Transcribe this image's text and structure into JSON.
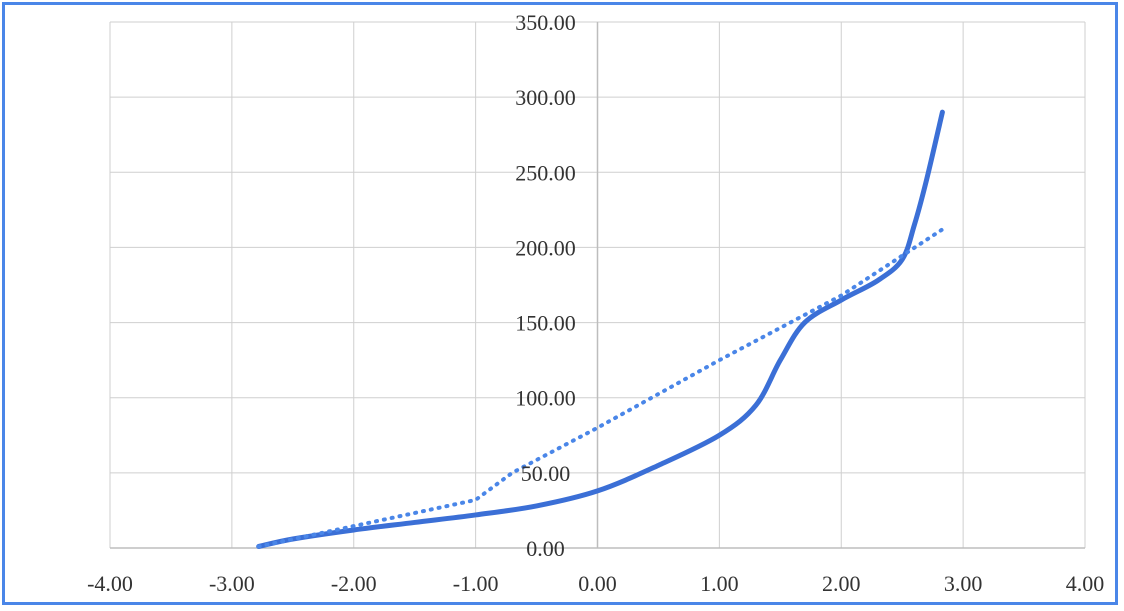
{
  "chart_data": {
    "type": "line",
    "title": "",
    "xlabel": "",
    "ylabel": "",
    "xlim": [
      -4,
      4
    ],
    "ylim": [
      0,
      350
    ],
    "x_ticks": [
      -4,
      -3,
      -2,
      -1,
      0,
      1,
      2,
      3,
      4
    ],
    "y_ticks": [
      0,
      50,
      100,
      150,
      200,
      250,
      300,
      350
    ],
    "x_tick_labels": [
      "-4.00",
      "-3.00",
      "-2.00",
      "-1.00",
      "0.00",
      "1.00",
      "2.00",
      "3.00",
      "4.00"
    ],
    "y_tick_labels": [
      "0.00",
      "50.00",
      "100.00",
      "150.00",
      "200.00",
      "250.00",
      "300.00",
      "350.00"
    ],
    "grid": true,
    "legend": "none",
    "series": [
      {
        "style": "solid",
        "color": "#3b6fd6",
        "points": [
          [
            -2.78,
            1
          ],
          [
            -2.5,
            6
          ],
          [
            -2.0,
            12
          ],
          [
            -1.5,
            17
          ],
          [
            -1.0,
            22
          ],
          [
            -0.5,
            28
          ],
          [
            0.0,
            38
          ],
          [
            0.5,
            55
          ],
          [
            1.0,
            75
          ],
          [
            1.3,
            95
          ],
          [
            1.5,
            125
          ],
          [
            1.7,
            150
          ],
          [
            2.0,
            165
          ],
          [
            2.3,
            178
          ],
          [
            2.5,
            192
          ],
          [
            2.6,
            215
          ],
          [
            2.7,
            245
          ],
          [
            2.83,
            290
          ]
        ]
      },
      {
        "style": "dotted",
        "color": "#4a86e8",
        "points": [
          [
            -2.78,
            1
          ],
          [
            -1.0,
            32
          ],
          [
            -0.7,
            50
          ],
          [
            0.0,
            80
          ],
          [
            1.0,
            125
          ],
          [
            2.0,
            168
          ],
          [
            2.83,
            212
          ]
        ]
      }
    ]
  }
}
